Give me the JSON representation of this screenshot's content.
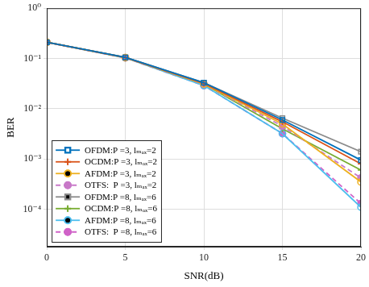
{
  "chart_data": {
    "type": "line",
    "x_label": "SNR(dB)",
    "y_label": "BER",
    "x": [
      0,
      5,
      10,
      15,
      20
    ],
    "xlim": [
      0,
      20
    ],
    "xticks": [
      0,
      5,
      10,
      15,
      20
    ],
    "ylim": [
      1.8e-05,
      1
    ],
    "yticks": [
      {
        "value": 0.0001,
        "label": "10⁻⁴"
      },
      {
        "value": 0.001,
        "label": "10⁻³"
      },
      {
        "value": 0.01,
        "label": "10⁻²"
      },
      {
        "value": 0.1,
        "label": "10⁻¹"
      },
      {
        "value": 1,
        "label": "10⁰"
      }
    ],
    "log": "y",
    "grid": true,
    "legend": "lower left",
    "series": [
      {
        "name": "OFDM:P =3, lₘₐₓ=2",
        "color": "#0072BD",
        "marker": "square",
        "line_style": "solid",
        "values": [
          0.21,
          0.105,
          0.033,
          0.006,
          0.00095
        ]
      },
      {
        "name": "OCDM:P =3, lₘₐₓ=2",
        "color": "#D95319",
        "marker": "plus",
        "line_style": "solid",
        "values": [
          0.21,
          0.104,
          0.032,
          0.0055,
          0.0008
        ]
      },
      {
        "name": "AFDM:P =3, lₘₐₓ=2",
        "color": "#EDB120",
        "marker": "circle",
        "line_style": "solid",
        "values": [
          0.21,
          0.104,
          0.031,
          0.005,
          0.00035
        ]
      },
      {
        "name": "OTFS:  P =3, lₘₐₓ=2",
        "color": "#C879C8",
        "marker": "filled_circle",
        "line_style": "dashed",
        "values": [
          0.21,
          0.104,
          0.031,
          0.0045,
          0.00042
        ]
      },
      {
        "name": "OFDM:P =8, lₘₐₓ=6",
        "color": "#8C8C8C",
        "marker": "square",
        "line_style": "solid",
        "values": [
          0.21,
          0.105,
          0.033,
          0.0065,
          0.0014
        ]
      },
      {
        "name": "OCDM:P =8, lₘₐₓ=6",
        "color": "#77AC30",
        "marker": "plus",
        "line_style": "solid",
        "values": [
          0.21,
          0.104,
          0.031,
          0.004,
          0.0006
        ]
      },
      {
        "name": "AFDM:P =8, lₘₐₓ=6",
        "color": "#4DBEEE",
        "marker": "circle",
        "line_style": "solid",
        "values": [
          0.21,
          0.103,
          0.029,
          0.0032,
          0.00011
        ]
      },
      {
        "name": "OTFS:  P =8, lₘₐₓ=6",
        "color": "#D062C8",
        "marker": "filled_circle",
        "line_style": "dashed",
        "values": [
          0.21,
          0.103,
          0.029,
          0.0032,
          0.00013
        ]
      }
    ]
  }
}
